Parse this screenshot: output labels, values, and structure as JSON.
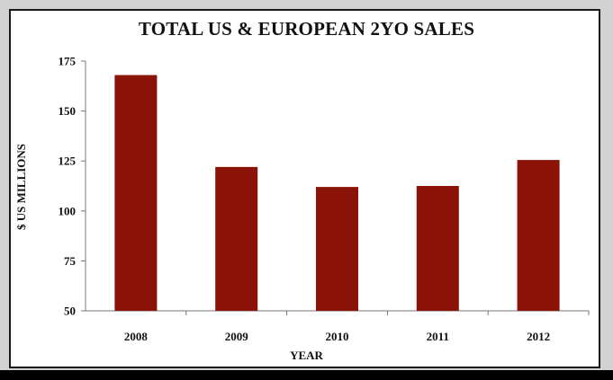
{
  "colors": {
    "bar": "#8b1207",
    "frame": "#d2d2d2",
    "panel": "#ffffff"
  },
  "chart_data": {
    "type": "bar",
    "title": "TOTAL US & EUROPEAN 2YO SALES",
    "xlabel": "YEAR",
    "ylabel": "$ US MILLIONS",
    "categories": [
      "2008",
      "2009",
      "2010",
      "2011",
      "2012"
    ],
    "values": [
      168,
      122,
      112,
      112.5,
      125.5
    ],
    "ylim": [
      50,
      175
    ],
    "yticks": [
      50,
      75,
      100,
      125,
      150,
      175
    ],
    "grid": false,
    "legend": "none"
  }
}
